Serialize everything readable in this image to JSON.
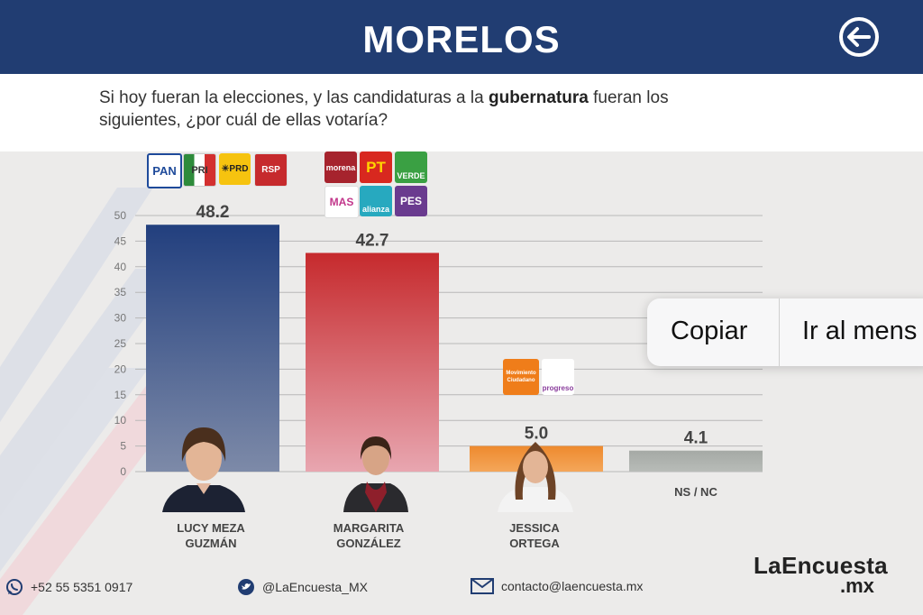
{
  "header": {
    "title": "MORELOS"
  },
  "question": {
    "before": "Si hoy fueran la elecciones, y las candidaturas a la ",
    "bold": "gubernatura",
    "after": " fueran los siguientes, ¿por cuál de ellas votaría?"
  },
  "chart_data": {
    "type": "bar",
    "categories": [
      "LUCY MEZA GUZMÁN",
      "MARGARITA GONZÁLEZ",
      "JESSICA ORTEGA",
      "NS / NC"
    ],
    "values": [
      48.2,
      42.7,
      5.0,
      4.1
    ],
    "value_labels": [
      "48.2",
      "42.7",
      "5.0",
      "4.1"
    ],
    "ylim": [
      0,
      50
    ],
    "yticks": [
      0,
      5,
      10,
      15,
      20,
      25,
      30,
      35,
      40,
      45,
      50
    ],
    "grid": true,
    "colors": [
      "#223f7e",
      "#c62a2d",
      "#ee8a2e",
      "#a5a9a5"
    ]
  },
  "candidates": [
    {
      "name_line1": "LUCY MEZA",
      "name_line2": "GUZMÁN"
    },
    {
      "name_line1": "MARGARITA",
      "name_line2": "GONZÁLEZ"
    },
    {
      "name_line1": "JESSICA",
      "name_line2": "ORTEGA"
    },
    {
      "name_line1": "NS / NC",
      "name_line2": ""
    }
  ],
  "party_logos": {
    "group1": [
      "PAN",
      "PRI",
      "PRD",
      "RSP"
    ],
    "group2": [
      "morena",
      "PT",
      "VERDE",
      "MAS",
      "alianza",
      "PES"
    ],
    "group3": [
      "Movimiento Ciudadano",
      "progreso"
    ]
  },
  "context_menu": {
    "copy": "Copiar",
    "goto": "Ir al mens"
  },
  "footer": {
    "phone": "+52 55 5351 0917",
    "twitter": "@LaEncuesta_MX",
    "email": "contacto@laencuesta.mx",
    "brand": "LaEncuesta",
    "brand_suffix": ".mx"
  }
}
